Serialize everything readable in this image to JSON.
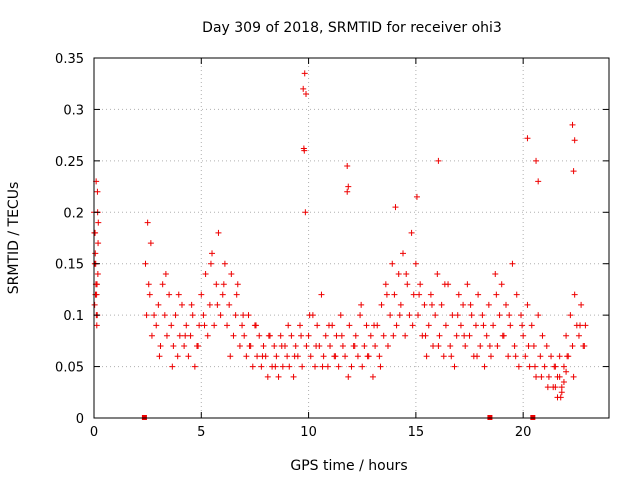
{
  "chart_data": {
    "type": "scatter",
    "title": "Day 309 of 2018, SRMTID for receiver ohi3",
    "xlabel": "GPS time / hours",
    "ylabel": "SRMTID / TECUs",
    "xlim": [
      0,
      24
    ],
    "ylim": [
      0,
      0.35
    ],
    "xticks": [
      0,
      5,
      10,
      15,
      20
    ],
    "yticks": [
      0,
      0.05,
      0.1,
      0.15,
      0.2,
      0.25,
      0.3,
      0.35
    ],
    "ytick_labels": [
      "0",
      "0.05",
      "0.1",
      "0.15",
      "0.2",
      "0.25",
      "0.3",
      "0.35"
    ],
    "grid": true,
    "marker": "+",
    "colors": {
      "series": "#ee0000",
      "grid": "#b0b0b0",
      "frame": "#000000"
    },
    "baseline_markers_x": [
      2.35,
      18.45,
      20.45
    ],
    "series": [
      {
        "name": "SRMTID",
        "x": [
          0.0,
          0.05,
          0.08,
          0.1,
          0.12,
          0.15,
          0.18,
          0.2,
          0.03,
          0.06,
          0.09,
          0.13,
          0.16,
          0.19,
          0.04,
          0.07,
          0.11,
          0.14,
          0.17,
          0.02,
          2.4,
          2.5,
          2.6,
          2.7,
          2.8,
          2.9,
          3.0,
          3.1,
          3.2,
          3.3,
          3.4,
          3.5,
          3.6,
          3.7,
          3.8,
          3.9,
          4.0,
          4.1,
          4.2,
          4.3,
          4.4,
          4.5,
          4.6,
          4.7,
          4.8,
          4.9,
          5.0,
          5.1,
          5.2,
          5.3,
          5.4,
          5.5,
          5.6,
          5.7,
          5.8,
          5.9,
          6.0,
          6.1,
          6.2,
          6.3,
          6.4,
          6.5,
          6.6,
          6.7,
          6.8,
          6.9,
          7.0,
          7.1,
          7.2,
          7.3,
          7.4,
          7.5,
          7.6,
          7.7,
          7.8,
          7.9,
          8.0,
          8.1,
          8.2,
          8.3,
          8.4,
          8.5,
          8.6,
          8.7,
          8.8,
          8.9,
          9.0,
          9.1,
          9.2,
          9.3,
          9.4,
          9.5,
          9.6,
          9.7,
          9.75,
          9.8,
          9.85,
          9.9,
          10.0,
          10.1,
          10.2,
          10.3,
          10.4,
          10.5,
          10.6,
          10.7,
          10.8,
          10.9,
          11.0,
          11.1,
          11.2,
          11.3,
          11.4,
          11.5,
          11.6,
          11.7,
          11.8,
          11.9,
          12.0,
          12.1,
          12.2,
          12.3,
          12.4,
          12.5,
          12.6,
          12.7,
          12.8,
          12.9,
          13.0,
          13.1,
          13.2,
          13.3,
          13.4,
          13.5,
          13.6,
          13.7,
          13.8,
          13.9,
          14.0,
          14.1,
          14.2,
          14.3,
          14.4,
          14.5,
          14.6,
          14.7,
          14.8,
          14.9,
          15.0,
          15.1,
          15.2,
          15.3,
          15.4,
          15.5,
          15.6,
          15.7,
          15.8,
          15.9,
          16.0,
          16.1,
          16.2,
          16.3,
          16.4,
          16.5,
          16.6,
          16.7,
          16.8,
          16.9,
          17.0,
          17.1,
          17.2,
          17.3,
          17.4,
          17.5,
          17.6,
          17.7,
          17.8,
          17.9,
          18.0,
          18.1,
          18.2,
          18.3,
          18.4,
          18.5,
          18.6,
          18.7,
          18.8,
          18.9,
          19.0,
          19.1,
          19.2,
          19.3,
          19.4,
          19.5,
          19.6,
          19.7,
          19.8,
          19.9,
          20.0,
          20.1,
          20.2,
          20.3,
          20.4,
          20.5,
          20.6,
          20.7,
          20.8,
          20.9,
          21.0,
          21.1,
          21.2,
          21.3,
          21.4,
          21.5,
          21.6,
          21.7,
          21.8,
          21.9,
          22.0,
          22.1,
          22.2,
          22.3,
          22.4,
          22.5,
          22.6,
          22.7,
          22.8,
          22.9,
          2.45,
          2.55,
          2.65,
          3.05,
          3.35,
          3.65,
          3.95,
          4.25,
          4.55,
          4.85,
          5.15,
          5.45,
          5.75,
          6.05,
          6.35,
          6.65,
          6.95,
          7.25,
          7.55,
          7.85,
          8.15,
          8.45,
          8.75,
          9.05,
          9.35,
          9.65,
          10.05,
          10.35,
          10.65,
          10.95,
          11.25,
          11.55,
          11.85,
          12.15,
          12.45,
          12.75,
          13.05,
          13.35,
          13.65,
          13.95,
          14.25,
          14.55,
          14.85,
          15.15,
          15.45,
          15.75,
          16.05,
          16.35,
          16.65,
          16.95,
          17.25,
          17.55,
          17.85,
          18.15,
          18.45,
          18.75,
          19.05,
          19.35,
          19.65,
          19.95,
          20.25,
          20.55,
          20.85,
          21.15,
          21.45,
          21.75,
          22.05,
          22.35,
          22.65,
          22.85,
          9.82,
          9.88,
          9.78,
          11.8,
          11.85,
          14.05,
          15.05,
          16.05,
          20.2,
          20.6,
          20.7,
          22.3,
          22.35,
          22.4,
          21.5,
          21.6,
          21.7,
          21.8,
          21.9,
          22.0
        ],
        "y": [
          0.2,
          0.18,
          0.15,
          0.23,
          0.12,
          0.1,
          0.14,
          0.19,
          0.11,
          0.16,
          0.13,
          0.09,
          0.22,
          0.17,
          0.15,
          0.12,
          0.1,
          0.13,
          0.2,
          0.18,
          0.15,
          0.19,
          0.12,
          0.08,
          0.1,
          0.09,
          0.11,
          0.07,
          0.13,
          0.1,
          0.08,
          0.12,
          0.09,
          0.07,
          0.1,
          0.06,
          0.08,
          0.11,
          0.07,
          0.09,
          0.06,
          0.08,
          0.1,
          0.05,
          0.07,
          0.09,
          0.12,
          0.1,
          0.14,
          0.08,
          0.11,
          0.16,
          0.09,
          0.13,
          0.18,
          0.1,
          0.12,
          0.15,
          0.09,
          0.11,
          0.14,
          0.08,
          0.1,
          0.13,
          0.07,
          0.09,
          0.08,
          0.06,
          0.1,
          0.07,
          0.05,
          0.09,
          0.06,
          0.08,
          0.05,
          0.07,
          0.06,
          0.04,
          0.08,
          0.05,
          0.07,
          0.06,
          0.04,
          0.08,
          0.05,
          0.07,
          0.06,
          0.05,
          0.08,
          0.04,
          0.07,
          0.06,
          0.09,
          0.05,
          0.32,
          0.26,
          0.2,
          0.07,
          0.08,
          0.06,
          0.1,
          0.05,
          0.09,
          0.07,
          0.12,
          0.06,
          0.08,
          0.05,
          0.07,
          0.09,
          0.06,
          0.08,
          0.05,
          0.1,
          0.07,
          0.06,
          0.22,
          0.09,
          0.05,
          0.07,
          0.08,
          0.06,
          0.1,
          0.05,
          0.07,
          0.09,
          0.06,
          0.08,
          0.04,
          0.07,
          0.09,
          0.06,
          0.11,
          0.08,
          0.13,
          0.07,
          0.1,
          0.15,
          0.12,
          0.09,
          0.14,
          0.11,
          0.16,
          0.08,
          0.13,
          0.1,
          0.18,
          0.12,
          0.15,
          0.1,
          0.13,
          0.08,
          0.11,
          0.06,
          0.09,
          0.12,
          0.07,
          0.1,
          0.14,
          0.08,
          0.11,
          0.06,
          0.09,
          0.13,
          0.07,
          0.1,
          0.05,
          0.08,
          0.12,
          0.09,
          0.11,
          0.07,
          0.13,
          0.08,
          0.1,
          0.06,
          0.09,
          0.12,
          0.07,
          0.1,
          0.05,
          0.08,
          0.11,
          0.06,
          0.09,
          0.14,
          0.07,
          0.1,
          0.13,
          0.08,
          0.11,
          0.06,
          0.09,
          0.15,
          0.07,
          0.12,
          0.05,
          0.1,
          0.08,
          0.06,
          0.11,
          0.05,
          0.09,
          0.07,
          0.04,
          0.1,
          0.06,
          0.08,
          0.05,
          0.07,
          0.04,
          0.06,
          0.03,
          0.05,
          0.04,
          0.06,
          0.03,
          0.05,
          0.08,
          0.06,
          0.1,
          0.07,
          0.12,
          0.09,
          0.08,
          0.11,
          0.07,
          0.09,
          0.1,
          0.13,
          0.17,
          0.06,
          0.14,
          0.05,
          0.12,
          0.08,
          0.11,
          0.07,
          0.09,
          0.15,
          0.11,
          0.13,
          0.06,
          0.12,
          0.1,
          0.07,
          0.09,
          0.06,
          0.08,
          0.05,
          0.07,
          0.09,
          0.06,
          0.08,
          0.1,
          0.07,
          0.05,
          0.09,
          0.06,
          0.08,
          0.04,
          0.07,
          0.11,
          0.06,
          0.09,
          0.05,
          0.12,
          0.08,
          0.1,
          0.14,
          0.09,
          0.12,
          0.08,
          0.11,
          0.07,
          0.13,
          0.06,
          0.1,
          0.08,
          0.11,
          0.06,
          0.09,
          0.07,
          0.12,
          0.08,
          0.1,
          0.06,
          0.09,
          0.07,
          0.05,
          0.04,
          0.03,
          0.05,
          0.02,
          0.06,
          0.04,
          0.09,
          0.07,
          0.335,
          0.315,
          0.262,
          0.245,
          0.225,
          0.205,
          0.215,
          0.25,
          0.272,
          0.25,
          0.23,
          0.285,
          0.24,
          0.27,
          0.03,
          0.02,
          0.04,
          0.025,
          0.035,
          0.045
        ]
      }
    ]
  }
}
